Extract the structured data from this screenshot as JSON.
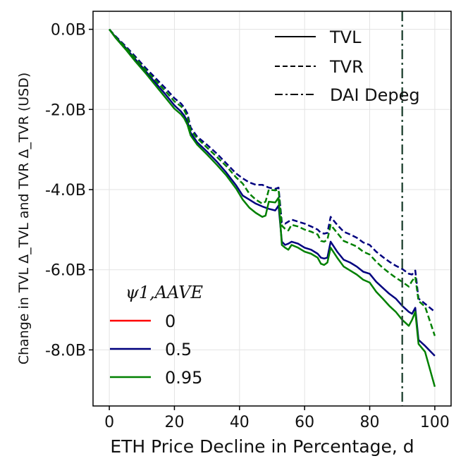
{
  "chart_data": {
    "type": "line",
    "xlabel": "ETH Price Decline in Percentage, d",
    "ylabel": "Change in TVL Δ_TVL and TVR Δ_TVR (USD)",
    "xlim": [
      -5,
      105
    ],
    "ylim": [
      -9.4,
      0.45
    ],
    "xticks": [
      0,
      20,
      40,
      60,
      80,
      100
    ],
    "xtick_labels": [
      "0",
      "20",
      "40",
      "60",
      "80",
      "100"
    ],
    "yticks": [
      0,
      -2,
      -4,
      -6,
      -8
    ],
    "ytick_labels": [
      "0.0B",
      "-2.0B",
      "-4.0B",
      "-6.0B",
      "-8.0B"
    ],
    "grid": true,
    "vline": {
      "x": 90,
      "label": "DAI Depeg",
      "color": "#2f4f3f"
    },
    "style_legend": {
      "position": "top-right",
      "entries": [
        {
          "label": "TVL",
          "dash": "solid"
        },
        {
          "label": "TVR",
          "dash": "dashed"
        },
        {
          "label": "DAI Depeg",
          "dash": "dashdot"
        }
      ]
    },
    "color_legend": {
      "position": "bottom-left",
      "title": "ψ1,AAVE",
      "entries": [
        {
          "label": "0",
          "color": "#ff0000"
        },
        {
          "label": "0.5",
          "color": "#00007f"
        },
        {
          "label": "0.95",
          "color": "#008000"
        }
      ]
    },
    "series": [
      {
        "name": "TVL ψ=0.5",
        "metric": "TVL",
        "psi": "0.5",
        "color": "#00007f",
        "dash": "solid",
        "x": [
          0,
          2,
          5,
          8,
          11,
          14,
          17,
          20,
          22,
          23,
          24,
          25,
          27,
          30,
          33,
          36,
          39,
          41,
          43,
          45,
          47,
          49,
          51,
          52,
          53,
          54,
          55,
          56,
          58,
          60,
          62,
          64,
          65,
          66,
          67,
          68,
          70,
          72,
          74,
          76,
          78,
          80,
          82,
          84,
          86,
          88,
          90,
          92,
          93,
          94,
          95,
          97,
          100
        ],
        "y": [
          0,
          -0.2,
          -0.46,
          -0.75,
          -1.03,
          -1.32,
          -1.6,
          -1.9,
          -2.05,
          -2.15,
          -2.3,
          -2.58,
          -2.82,
          -3.05,
          -3.3,
          -3.58,
          -3.9,
          -4.15,
          -4.25,
          -4.35,
          -4.42,
          -4.48,
          -4.52,
          -4.4,
          -5.3,
          -5.38,
          -5.35,
          -5.3,
          -5.35,
          -5.45,
          -5.5,
          -5.6,
          -5.7,
          -5.72,
          -5.7,
          -5.3,
          -5.55,
          -5.75,
          -5.82,
          -5.92,
          -6.05,
          -6.1,
          -6.3,
          -6.45,
          -6.6,
          -6.72,
          -6.9,
          -7.05,
          -7.1,
          -6.95,
          -7.75,
          -7.9,
          -8.15
        ]
      },
      {
        "name": "TVR ψ=0.5",
        "metric": "TVR",
        "psi": "0.5",
        "color": "#00007f",
        "dash": "dashed",
        "x": [
          0,
          2,
          5,
          8,
          11,
          14,
          17,
          20,
          22,
          23,
          24,
          25,
          27,
          30,
          33,
          36,
          39,
          41,
          43,
          45,
          47,
          49,
          51,
          52,
          53,
          54,
          55,
          56,
          58,
          60,
          62,
          64,
          65,
          66,
          67,
          68,
          70,
          72,
          74,
          76,
          78,
          80,
          82,
          84,
          86,
          88,
          90,
          92,
          93,
          94,
          95,
          97,
          100
        ],
        "y": [
          0,
          -0.18,
          -0.42,
          -0.68,
          -0.95,
          -1.2,
          -1.45,
          -1.72,
          -1.85,
          -1.95,
          -2.1,
          -2.45,
          -2.68,
          -2.88,
          -3.1,
          -3.35,
          -3.6,
          -3.72,
          -3.82,
          -3.88,
          -3.88,
          -3.95,
          -3.98,
          -3.95,
          -4.82,
          -4.85,
          -4.8,
          -4.75,
          -4.8,
          -4.85,
          -4.92,
          -5.0,
          -5.08,
          -5.1,
          -5.08,
          -4.68,
          -4.88,
          -5.05,
          -5.12,
          -5.2,
          -5.32,
          -5.38,
          -5.55,
          -5.68,
          -5.8,
          -5.9,
          -5.98,
          -6.1,
          -6.12,
          -6.02,
          -6.72,
          -6.85,
          -7.05
        ]
      },
      {
        "name": "TVL ψ=0.95",
        "metric": "TVL",
        "psi": "0.95",
        "color": "#008000",
        "dash": "solid",
        "x": [
          0,
          2,
          5,
          8,
          11,
          14,
          17,
          20,
          22,
          23,
          24,
          25,
          27,
          30,
          33,
          36,
          39,
          41,
          43,
          45,
          47,
          48,
          49,
          51,
          52,
          53,
          54,
          55,
          56,
          58,
          60,
          62,
          64,
          65,
          66,
          67,
          68,
          70,
          72,
          74,
          76,
          78,
          80,
          82,
          84,
          86,
          88,
          90,
          92,
          93,
          94,
          95,
          97,
          100
        ],
        "y": [
          0,
          -0.22,
          -0.5,
          -0.8,
          -1.08,
          -1.38,
          -1.68,
          -1.98,
          -2.12,
          -2.22,
          -2.38,
          -2.65,
          -2.88,
          -3.12,
          -3.38,
          -3.65,
          -3.98,
          -4.25,
          -4.45,
          -4.58,
          -4.68,
          -4.65,
          -4.3,
          -4.32,
          -4.2,
          -5.38,
          -5.45,
          -5.5,
          -5.38,
          -5.45,
          -5.55,
          -5.6,
          -5.7,
          -5.85,
          -5.88,
          -5.82,
          -5.45,
          -5.7,
          -5.92,
          -6.02,
          -6.12,
          -6.25,
          -6.32,
          -6.55,
          -6.72,
          -6.9,
          -7.05,
          -7.25,
          -7.4,
          -7.25,
          -7.05,
          -7.85,
          -8.05,
          -8.92
        ]
      },
      {
        "name": "TVR ψ=0.95",
        "metric": "TVR",
        "psi": "0.95",
        "color": "#008000",
        "dash": "dashed",
        "x": [
          0,
          2,
          5,
          8,
          11,
          14,
          17,
          20,
          22,
          23,
          24,
          25,
          27,
          30,
          33,
          36,
          39,
          41,
          43,
          45,
          47,
          48,
          49,
          51,
          52,
          53,
          54,
          55,
          56,
          58,
          60,
          62,
          64,
          65,
          66,
          67,
          68,
          70,
          72,
          74,
          76,
          78,
          80,
          82,
          84,
          86,
          88,
          90,
          92,
          93,
          94,
          95,
          97,
          100
        ],
        "y": [
          0,
          -0.2,
          -0.45,
          -0.72,
          -1.0,
          -1.26,
          -1.52,
          -1.8,
          -1.92,
          -2.02,
          -2.18,
          -2.52,
          -2.72,
          -2.95,
          -3.18,
          -3.42,
          -3.7,
          -3.85,
          -4.1,
          -4.25,
          -4.35,
          -4.3,
          -4.0,
          -4.02,
          -4.0,
          -4.9,
          -4.98,
          -5.02,
          -4.88,
          -4.92,
          -5.0,
          -5.05,
          -5.12,
          -5.28,
          -5.3,
          -5.25,
          -4.88,
          -5.08,
          -5.28,
          -5.35,
          -5.42,
          -5.55,
          -5.62,
          -5.8,
          -5.95,
          -6.08,
          -6.2,
          -6.3,
          -6.42,
          -6.28,
          -6.18,
          -6.78,
          -6.92,
          -7.65
        ]
      }
    ]
  }
}
